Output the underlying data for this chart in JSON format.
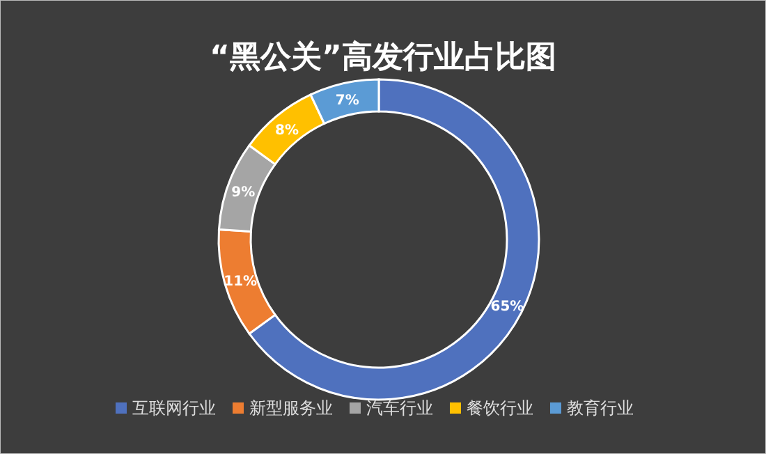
{
  "chart_data": {
    "type": "donut",
    "title": "“黑公关”高发行业占比图",
    "categories": [
      "互联网行业",
      "新型服务业",
      "汽车行业",
      "餐饮行业",
      "教育行业"
    ],
    "values": [
      65,
      11,
      9,
      8,
      7
    ],
    "colors": [
      "#4f71be",
      "#ed7d31",
      "#a5a5a5",
      "#ffc000",
      "#5b9bd5"
    ],
    "value_labels": [
      "65%",
      "11%",
      "9%",
      "8%",
      "7%"
    ],
    "legend": "bottom"
  }
}
